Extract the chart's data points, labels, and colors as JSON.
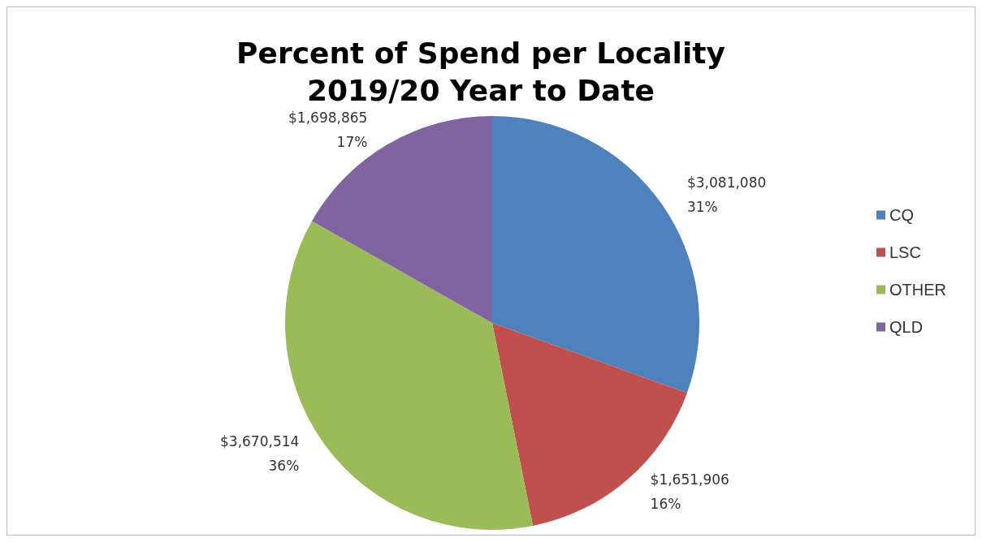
{
  "chart_data": {
    "type": "pie",
    "title": "Percent of Spend per Locality\n2019/20 Year to Date",
    "categories": [
      "CQ",
      "LSC",
      "OTHER",
      "QLD"
    ],
    "values": [
      3081080,
      1651906,
      3670514,
      1698865
    ],
    "colors": [
      "#4f81bd",
      "#c0504d",
      "#9bbb59",
      "#8064a2"
    ],
    "value_labels": [
      "$3,081,080\n31%",
      "$1,651,906\n16%",
      "$3,670,514\n36%",
      "$1,698,865\n17%"
    ],
    "legend": "right"
  }
}
